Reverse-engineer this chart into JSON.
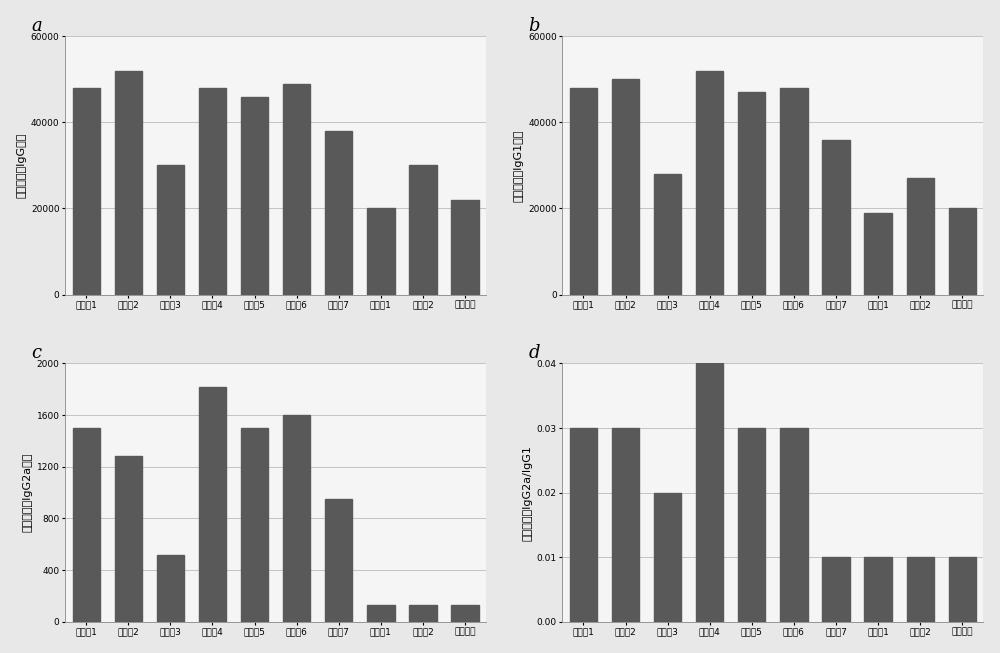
{
  "categories": [
    "实验例1",
    "实验例2",
    "实验例3",
    "实验例4",
    "实验例5",
    "实验例6",
    "实验例7",
    "对比例1",
    "对比例2",
    "阳性对照"
  ],
  "subplot_a": {
    "title": "a",
    "ylabel": "多糖特异性IgG满度",
    "values": [
      48000,
      52000,
      30000,
      48000,
      46000,
      49000,
      38000,
      20000,
      30000,
      22000
    ],
    "ylim": [
      0,
      60000
    ],
    "yticks": [
      0,
      20000,
      40000,
      60000
    ]
  },
  "subplot_b": {
    "title": "b",
    "ylabel": "多糖特异性IgG1满度",
    "values": [
      48000,
      50000,
      28000,
      52000,
      47000,
      48000,
      36000,
      19000,
      27000,
      20000
    ],
    "ylim": [
      0,
      60000
    ],
    "yticks": [
      0,
      20000,
      40000,
      60000
    ]
  },
  "subplot_c": {
    "title": "c",
    "ylabel": "多糖特异性IgG2a满度",
    "values": [
      1500,
      1280,
      520,
      1820,
      1500,
      1600,
      950,
      130,
      130,
      130
    ],
    "ylim": [
      0,
      2000
    ],
    "yticks": [
      0,
      400,
      800,
      1200,
      1600,
      2000
    ]
  },
  "subplot_d": {
    "title": "d",
    "ylabel": "多糖特异性IgG2a/IgG1",
    "values": [
      0.03,
      0.03,
      0.02,
      0.04,
      0.03,
      0.03,
      0.01,
      0.01,
      0.01,
      0.01
    ],
    "ylim": [
      0,
      0.04
    ],
    "yticks": [
      0,
      0.01,
      0.02,
      0.03,
      0.04
    ]
  },
  "bar_color": "#595959",
  "bg_color": "#f5f5f5",
  "figure_bg": "#e8e8e8",
  "grid_color": "#bbbbbb",
  "title_fontsize": 13,
  "label_fontsize": 8,
  "tick_fontsize": 6.5
}
